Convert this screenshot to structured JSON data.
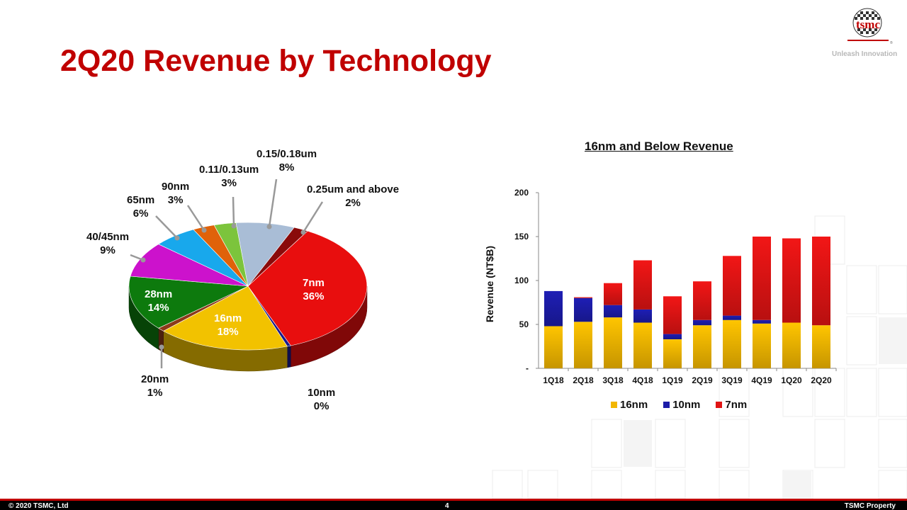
{
  "slide": {
    "title": "2Q20 Revenue by Technology",
    "logo_text": "tsmc",
    "tagline": "Unleash Innovation"
  },
  "pie": {
    "slices": [
      {
        "name": "7nm",
        "value": "36%",
        "pct": 36,
        "color": "#e80e0e"
      },
      {
        "name": "10nm",
        "value": "0%",
        "pct": 0.5,
        "color": "#1a1a8c"
      },
      {
        "name": "16nm",
        "value": "18%",
        "pct": 18,
        "color": "#f2c200"
      },
      {
        "name": "20nm",
        "value": "1%",
        "pct": 1,
        "color": "#8b3a1a"
      },
      {
        "name": "28nm",
        "value": "14%",
        "pct": 14,
        "color": "#0d7a0d"
      },
      {
        "name": "40/45nm",
        "value": "9%",
        "pct": 9,
        "color": "#cc12cc"
      },
      {
        "name": "65nm",
        "value": "6%",
        "pct": 6,
        "color": "#18a8ec"
      },
      {
        "name": "90nm",
        "value": "3%",
        "pct": 3,
        "color": "#e0620a"
      },
      {
        "name": "0.11/0.13um",
        "value": "3%",
        "pct": 3,
        "color": "#7cc43c"
      },
      {
        "name": "0.15/0.18um",
        "value": "8%",
        "pct": 8,
        "color": "#a9bdd6"
      },
      {
        "name": "0.25um and above",
        "value": "2%",
        "pct": 2,
        "color": "#8a0a0a"
      }
    ]
  },
  "chart_data": {
    "type": "bar",
    "title": "16nm and Below Revenue",
    "ylabel": "Revenue (NT$B)",
    "xlabel": "",
    "ylim": [
      0,
      200
    ],
    "yticks": [
      "-",
      "50",
      "100",
      "150",
      "200"
    ],
    "stacked": true,
    "categories": [
      "1Q18",
      "2Q18",
      "3Q18",
      "4Q18",
      "1Q19",
      "2Q19",
      "3Q19",
      "4Q19",
      "1Q20",
      "2Q20"
    ],
    "series": [
      {
        "name": "16nm",
        "color": "#f2b600",
        "values": [
          48,
          53,
          58,
          52,
          33,
          49,
          55,
          51,
          52,
          49
        ]
      },
      {
        "name": "10nm",
        "color": "#1c1ca8",
        "values": [
          40,
          27,
          14,
          15,
          6,
          6,
          5,
          4,
          0,
          0
        ]
      },
      {
        "name": "7nm",
        "color": "#e01414",
        "values": [
          0,
          1,
          25,
          56,
          43,
          44,
          68,
          95,
          96,
          101
        ]
      }
    ],
    "legend": "bottom"
  },
  "footer": {
    "copyright": "© 2020 TSMC, Ltd",
    "page": "4",
    "property": "TSMC Property"
  }
}
